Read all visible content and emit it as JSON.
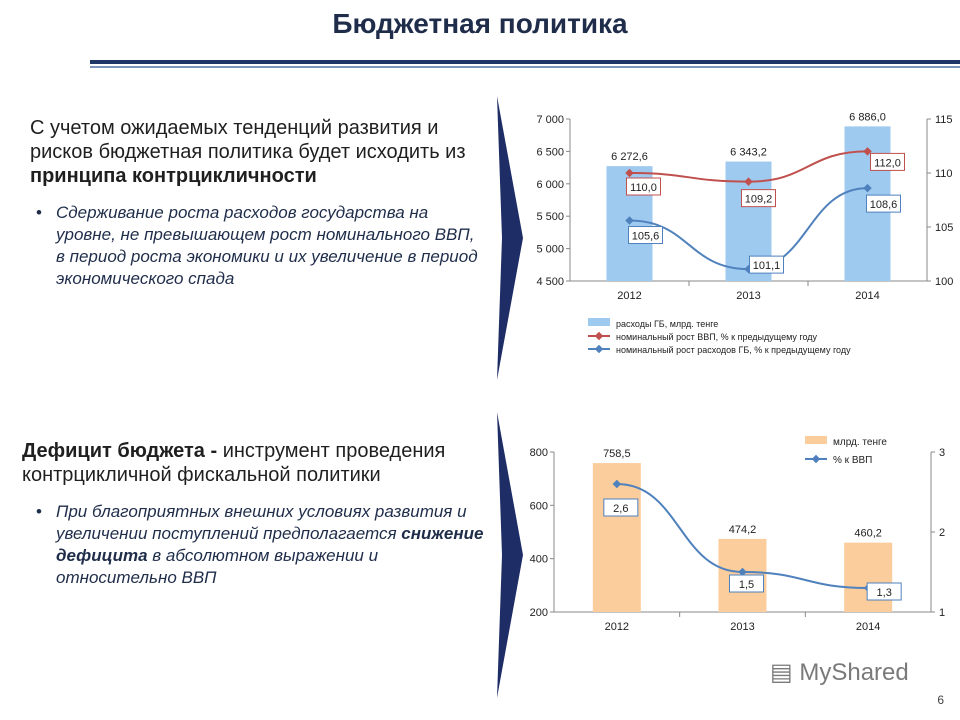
{
  "header": {
    "title": "Бюджетная политика"
  },
  "section1": {
    "lead_normal": "С учетом ожидаемых тенденций развития и рисков бюджетная политика будет исходить из ",
    "lead_bold": "принципа контрцикличности",
    "bullet": "Сдерживание роста расходов государства на уровне, не превышающем рост номинального ВВП, в период роста экономики и их увеличение в период экономического спада"
  },
  "section2": {
    "lead_bold": "Дефицит бюджета - ",
    "lead_normal": "инструмент проведения контрцикличной фискальной политики",
    "bullet_part1": "При благоприятных внешних условиях развития и увеличении поступлений предполагается ",
    "bullet_bold": "снижение дефицита",
    "bullet_part2": " в абсолютном выражении и относительно ВВП"
  },
  "chart_data": [
    {
      "type": "bar",
      "categories": [
        "2012",
        "2013",
        "2014"
      ],
      "ylim": [
        4500,
        7000
      ],
      "yticks": [
        "4 500",
        "5 000",
        "5 500",
        "6 000",
        "6 500",
        "7 000"
      ],
      "y2lim": [
        100,
        115
      ],
      "y2ticks": [
        "100",
        "105",
        "110",
        "115"
      ],
      "series": [
        {
          "name": "расходы ГБ, млрд. тенге",
          "kind": "bar",
          "axis": "left",
          "values": [
            6272.6,
            6343.2,
            6886.0
          ],
          "labels": [
            "6 272,6",
            "6 343,2",
            "6 886,0"
          ],
          "color": "#9fcaf0"
        },
        {
          "name": "номинальный рост ВВП, % к предыдущему году",
          "kind": "line",
          "axis": "right",
          "values": [
            110.0,
            109.2,
            112.0
          ],
          "labels": [
            "110,0",
            "109,2",
            "112,0"
          ],
          "color": "#c0504d"
        },
        {
          "name": "номинальный рост расходов ГБ, % к предыдущему году",
          "kind": "line",
          "axis": "right",
          "values": [
            105.6,
            101.1,
            108.6
          ],
          "labels": [
            "105,6",
            "101,1",
            "108,6"
          ],
          "color": "#4f81bd"
        }
      ],
      "legend": "bottom"
    },
    {
      "type": "bar",
      "categories": [
        "2012",
        "2013",
        "2014"
      ],
      "ylim": [
        200,
        800
      ],
      "yticks": [
        "200",
        "400",
        "600",
        "800"
      ],
      "y2lim": [
        1,
        3
      ],
      "y2ticks": [
        "1",
        "2",
        "3"
      ],
      "series": [
        {
          "name": "млрд. тенге",
          "kind": "bar",
          "axis": "left",
          "values": [
            758.5,
            474.2,
            460.2
          ],
          "labels": [
            "758,5",
            "474,2",
            "460,2"
          ],
          "color": "#fbcd9c"
        },
        {
          "name": "% к ВВП",
          "kind": "line",
          "axis": "right",
          "values": [
            2.6,
            1.5,
            1.3
          ],
          "labels": [
            "2,6",
            "1,5",
            "1,3"
          ],
          "color": "#4f81bd"
        }
      ],
      "legend": "top-right"
    }
  ],
  "branding": {
    "logo_text": "MyShared"
  },
  "page": {
    "number": "6"
  }
}
